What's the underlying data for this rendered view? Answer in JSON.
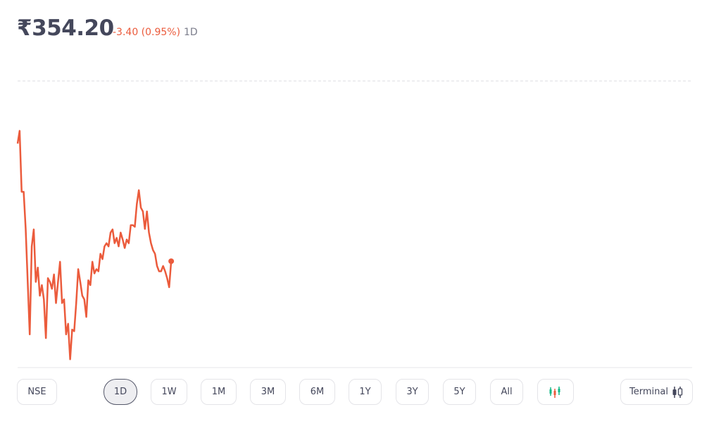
{
  "header": {
    "price": "₹354.20",
    "change": "-3.40 (0.95%)",
    "period": "1D"
  },
  "chart_data": {
    "type": "line",
    "color": "#eb5b3c",
    "values": [
      356.42,
      356.66,
      355.51,
      355.51,
      354.81,
      353.81,
      352.82,
      354.48,
      354.8,
      353.81,
      354.08,
      353.55,
      353.75,
      353.48,
      352.75,
      353.88,
      353.81,
      353.68,
      353.95,
      353.41,
      353.81,
      354.19,
      353.41,
      353.48,
      352.82,
      353.02,
      352.35,
      352.91,
      352.88,
      353.41,
      354.05,
      353.81,
      353.55,
      353.48,
      353.15,
      353.84,
      353.75,
      354.19,
      353.97,
      354.05,
      354.01,
      354.34,
      354.24,
      354.48,
      354.54,
      354.48,
      354.74,
      354.8,
      354.54,
      354.64,
      354.48,
      354.74,
      354.61,
      354.45,
      354.61,
      354.54,
      354.88,
      354.88,
      354.85,
      355.28,
      355.54,
      355.21,
      355.14,
      354.81,
      355.14,
      354.74,
      354.54,
      354.41,
      354.34,
      354.11,
      354.01,
      354.01,
      354.11,
      354.01,
      353.88,
      353.71,
      354.2
    ],
    "reference_line": 357.6,
    "ylim": [
      352.22,
      357.8
    ]
  },
  "controls": {
    "exchange": "NSE",
    "ranges": [
      "1D",
      "1W",
      "1M",
      "3M",
      "6M",
      "1Y",
      "3Y",
      "5Y",
      "All"
    ],
    "active_range": 0,
    "terminal": "Terminal"
  }
}
